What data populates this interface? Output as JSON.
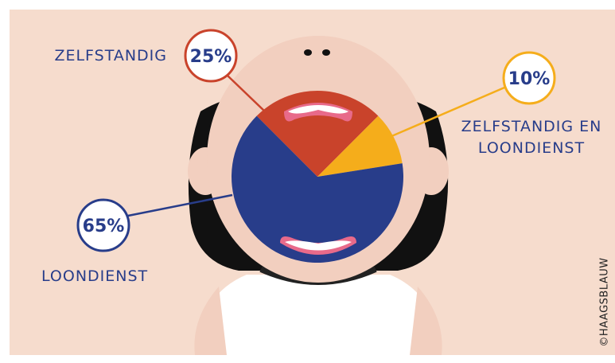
{
  "chart_data": {
    "type": "pie",
    "categories": [
      "ZELFSTANDIG",
      "ZELFSTANDIG EN LOONDIENST",
      "LOONDIENST"
    ],
    "values": [
      25,
      10,
      65
    ],
    "value_labels": [
      "25%",
      "10%",
      "65%"
    ],
    "colors": [
      "#c9432b",
      "#f5ad1b",
      "#283d8a"
    ],
    "credit": "©HAAGSBLAUW"
  }
}
